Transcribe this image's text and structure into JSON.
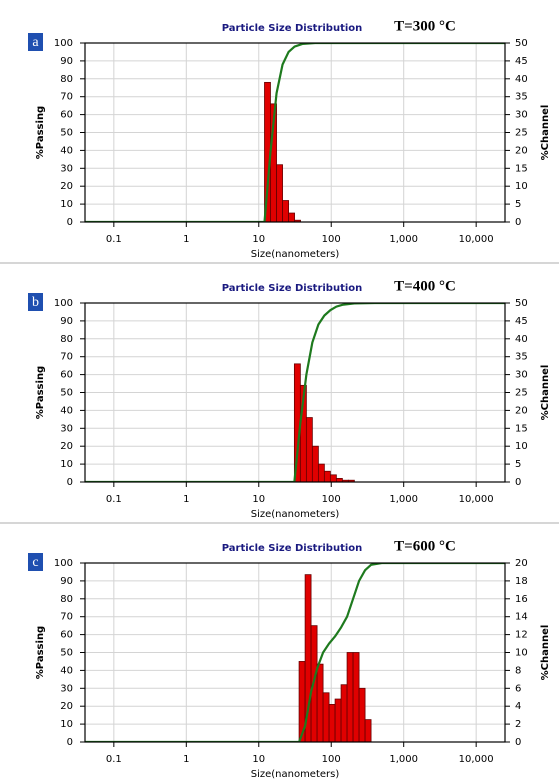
{
  "chart_data": [
    {
      "type": "histogram",
      "title": "Particle Size Distribution",
      "annotation": "T=300 °C",
      "panel_label": "a",
      "xlabel": "Size(nanometers)",
      "ylabel": "%Passing",
      "y2label": "%Channel",
      "xscale": "log",
      "xlim": [
        0.04,
        25000
      ],
      "xticks": [
        0.1,
        1,
        10,
        100,
        {
          "value": 1000,
          "label": "1,000"
        },
        {
          "value": 10000,
          "label": "10,000"
        }
      ],
      "ylim": [
        0,
        100
      ],
      "yticks": [
        0,
        10,
        20,
        30,
        40,
        50,
        60,
        70,
        80,
        90,
        100
      ],
      "y2lim": [
        0,
        50
      ],
      "y2ticks": [
        0,
        5,
        10,
        15,
        20,
        25,
        30,
        35,
        40,
        45,
        50
      ],
      "grid": true,
      "bins": [
        12,
        14.5,
        17.6,
        21.3,
        25.8,
        31.2,
        37.7
      ],
      "values": [
        39,
        33,
        16,
        6,
        2.5,
        0.5
      ],
      "axis": "y2",
      "color": "#e00000",
      "curve": {
        "x": [
          0.04,
          12,
          14.5,
          17.6,
          21.3,
          25.8,
          31.2,
          40,
          60,
          25000
        ],
        "values": [
          0,
          0,
          39,
          72,
          88,
          95,
          98,
          99.5,
          100,
          100
        ],
        "color": "#1e7a1e"
      }
    },
    {
      "type": "histogram",
      "title": "Particle Size Distribution",
      "annotation": "T=400 °C",
      "panel_label": "b",
      "xlabel": "Size(nanometers)",
      "ylabel": "%Passing",
      "y2label": "%Channel",
      "xscale": "log",
      "xlim": [
        0.04,
        25000
      ],
      "xticks": [
        0.1,
        1,
        10,
        100,
        {
          "value": 1000,
          "label": "1,000"
        },
        {
          "value": 10000,
          "label": "10,000"
        }
      ],
      "ylim": [
        0,
        100
      ],
      "yticks": [
        0,
        10,
        20,
        30,
        40,
        50,
        60,
        70,
        80,
        90,
        100
      ],
      "y2lim": [
        0,
        50
      ],
      "y2ticks": [
        0,
        5,
        10,
        15,
        20,
        25,
        30,
        35,
        40,
        45,
        50
      ],
      "grid": true,
      "bins": [
        31,
        37.5,
        45.4,
        54.9,
        66.5,
        80.4,
        97.3,
        117.8,
        142.5,
        172.4,
        208.6
      ],
      "values": [
        33,
        27,
        18,
        10,
        5,
        3,
        2,
        1,
        0.5,
        0.5
      ],
      "axis": "y2",
      "color": "#e00000",
      "curve": {
        "x": [
          0.04,
          31,
          37.5,
          45.4,
          54.9,
          66.5,
          80.4,
          97.3,
          117.8,
          142.5,
          208.6,
          400,
          25000
        ],
        "values": [
          0,
          0,
          33,
          60,
          78,
          88,
          93,
          96,
          98,
          99,
          99.8,
          100,
          100
        ],
        "color": "#1e7a1e"
      }
    },
    {
      "type": "histogram",
      "title": "Particle Size Distribution",
      "annotation": "T=600 °C",
      "panel_label": "c",
      "xlabel": "Size(nanometers)",
      "ylabel": "%Passing",
      "y2label": "%Channel",
      "xscale": "log",
      "xlim": [
        0.04,
        25000
      ],
      "xticks": [
        0.1,
        1,
        10,
        100,
        {
          "value": 1000,
          "label": "1,000"
        },
        {
          "value": 10000,
          "label": "10,000"
        }
      ],
      "ylim": [
        0,
        100
      ],
      "yticks": [
        0,
        10,
        20,
        30,
        40,
        50,
        60,
        70,
        80,
        90,
        100
      ],
      "y2lim": [
        0,
        20
      ],
      "y2ticks": [
        0,
        2,
        4,
        6,
        8,
        10,
        12,
        14,
        16,
        18,
        20
      ],
      "grid": true,
      "bins": [
        36,
        43.6,
        52.7,
        63.8,
        77.2,
        93.4,
        113,
        136.7,
        165.4,
        200.2,
        242.2,
        293.1,
        354.6
      ],
      "values": [
        9,
        18.7,
        13,
        8.7,
        5.5,
        4.2,
        4.8,
        6.4,
        10,
        10,
        6,
        2.5
      ],
      "axis": "y2",
      "color": "#e00000",
      "curve": {
        "x": [
          0.04,
          36,
          43.6,
          52.7,
          63.8,
          77.2,
          93.4,
          113,
          136.7,
          165.4,
          200.2,
          242.2,
          293.1,
          354.6,
          500,
          25000
        ],
        "values": [
          0,
          0,
          9,
          28,
          41,
          50,
          55,
          59,
          64,
          70,
          80,
          90,
          96,
          99,
          100,
          100
        ],
        "color": "#1e7a1e"
      }
    }
  ]
}
